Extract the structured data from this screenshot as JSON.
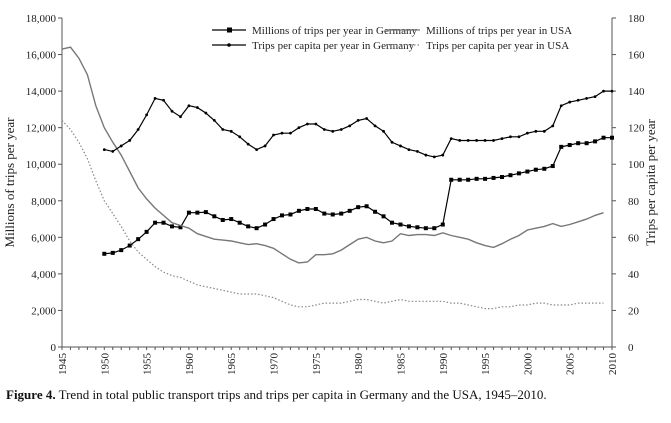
{
  "caption": {
    "label": "Figure 4.",
    "text": " Trend in total public transport trips and trips per capita in Germany and the USA, 1945–2010."
  },
  "chart_data": {
    "type": "line",
    "ylabel_left": "Millions of trips per year",
    "ylabel_right": "Trips per capita per year",
    "ylim_left": [
      0,
      18000
    ],
    "yticks_left": [
      0,
      2000,
      4000,
      6000,
      8000,
      10000,
      12000,
      14000,
      16000,
      18000
    ],
    "ytick_labels_left": [
      "0",
      "2,000",
      "4,000",
      "6,000",
      "8,000",
      "10,000",
      "12,000",
      "14,000",
      "16,000",
      "18,000"
    ],
    "ylim_right": [
      0,
      180
    ],
    "yticks_right": [
      0,
      20,
      40,
      60,
      80,
      100,
      120,
      140,
      160,
      180
    ],
    "ytick_labels_right": [
      "0",
      "20",
      "40",
      "60",
      "80",
      "100",
      "120",
      "140",
      "160",
      "180"
    ],
    "xlim": [
      1945,
      2010
    ],
    "xticks": [
      1945,
      1950,
      1955,
      1960,
      1965,
      1970,
      1975,
      1980,
      1985,
      1990,
      1995,
      2000,
      2005,
      2010
    ],
    "grid": false,
    "legend_placement": "top-center",
    "series": [
      {
        "name": "Millions of trips per year in Germany",
        "axis": "left",
        "style": "line-square",
        "color": "#000000",
        "x": [
          1950,
          1951,
          1952,
          1953,
          1954,
          1955,
          1956,
          1957,
          1958,
          1959,
          1960,
          1961,
          1962,
          1963,
          1964,
          1965,
          1966,
          1967,
          1968,
          1969,
          1970,
          1971,
          1972,
          1973,
          1974,
          1975,
          1976,
          1977,
          1978,
          1979,
          1980,
          1981,
          1982,
          1983,
          1984,
          1985,
          1986,
          1987,
          1988,
          1989,
          1990,
          1991,
          1992,
          1993,
          1994,
          1995,
          1996,
          1997,
          1998,
          1999,
          2000,
          2001,
          2002,
          2003,
          2004,
          2005,
          2006,
          2007,
          2008,
          2009,
          2010
        ],
        "y": [
          5100,
          5150,
          5300,
          5550,
          5900,
          6300,
          6800,
          6800,
          6600,
          6550,
          7350,
          7350,
          7380,
          7150,
          6950,
          7000,
          6800,
          6600,
          6500,
          6700,
          7000,
          7200,
          7250,
          7450,
          7550,
          7550,
          7300,
          7250,
          7300,
          7450,
          7650,
          7700,
          7400,
          7150,
          6800,
          6700,
          6600,
          6550,
          6500,
          6500,
          6700,
          9150,
          9150,
          9150,
          9200,
          9200,
          9250,
          9300,
          9400,
          9500,
          9600,
          9700,
          9750,
          9900,
          10950,
          11050,
          11150,
          11150,
          11250,
          11450,
          11450
        ]
      },
      {
        "name": "Millions of trips per year in USA",
        "axis": "left",
        "style": "gray-line",
        "color": "#777777",
        "x": [
          1945,
          1946,
          1947,
          1948,
          1949,
          1950,
          1951,
          1952,
          1953,
          1954,
          1955,
          1956,
          1957,
          1958,
          1959,
          1960,
          1961,
          1962,
          1963,
          1964,
          1965,
          1966,
          1967,
          1968,
          1969,
          1970,
          1971,
          1972,
          1973,
          1974,
          1975,
          1976,
          1977,
          1978,
          1979,
          1980,
          1981,
          1982,
          1983,
          1984,
          1985,
          1986,
          1987,
          1988,
          1989,
          1990,
          1991,
          1992,
          1993,
          1994,
          1995,
          1996,
          1997,
          1998,
          1999,
          2000,
          2001,
          2002,
          2003,
          2004,
          2005,
          2006,
          2007,
          2008,
          2009
        ],
        "y": [
          16300,
          16400,
          15800,
          14900,
          13200,
          12000,
          11200,
          10500,
          9600,
          8700,
          8100,
          7600,
          7200,
          6800,
          6650,
          6500,
          6200,
          6050,
          5900,
          5850,
          5800,
          5700,
          5600,
          5650,
          5550,
          5400,
          5100,
          4800,
          4600,
          4650,
          5050,
          5050,
          5100,
          5300,
          5600,
          5900,
          6000,
          5800,
          5700,
          5800,
          6200,
          6100,
          6150,
          6150,
          6100,
          6250,
          6100,
          6000,
          5900,
          5700,
          5550,
          5450,
          5650,
          5900,
          6100,
          6400,
          6500,
          6600,
          6750,
          6600,
          6700,
          6850,
          7000,
          7200,
          7350
        ]
      },
      {
        "name": "Trips per capita per year in Germany",
        "axis": "right",
        "style": "line-dot",
        "color": "#000000",
        "x": [
          1950,
          1951,
          1952,
          1953,
          1954,
          1955,
          1956,
          1957,
          1958,
          1959,
          1960,
          1961,
          1962,
          1963,
          1964,
          1965,
          1966,
          1967,
          1968,
          1969,
          1970,
          1971,
          1972,
          1973,
          1974,
          1975,
          1976,
          1977,
          1978,
          1979,
          1980,
          1981,
          1982,
          1983,
          1984,
          1985,
          1986,
          1987,
          1988,
          1989,
          1990,
          1991,
          1992,
          1993,
          1994,
          1995,
          1996,
          1997,
          1998,
          1999,
          2000,
          2001,
          2002,
          2003,
          2004,
          2005,
          2006,
          2007,
          2008,
          2009,
          2010
        ],
        "y": [
          108,
          107,
          110,
          113,
          119,
          127,
          136,
          135,
          129,
          126,
          132,
          131,
          128,
          124,
          119,
          118,
          115,
          111,
          108,
          110,
          116,
          117,
          117,
          120,
          122,
          122,
          119,
          118,
          119,
          121,
          124,
          125,
          121,
          118,
          112,
          110,
          108,
          107,
          105,
          104,
          105,
          114,
          113,
          113,
          113,
          113,
          113,
          114,
          115,
          115,
          117,
          118,
          118,
          121,
          132,
          134,
          135,
          136,
          137,
          140,
          140
        ]
      },
      {
        "name": "Trips per capita per year in USA",
        "axis": "right",
        "style": "dotted",
        "color": "#888888",
        "x": [
          1945,
          1946,
          1947,
          1948,
          1949,
          1950,
          1951,
          1952,
          1953,
          1954,
          1955,
          1956,
          1957,
          1958,
          1959,
          1960,
          1961,
          1962,
          1963,
          1964,
          1965,
          1966,
          1967,
          1968,
          1969,
          1970,
          1971,
          1972,
          1973,
          1974,
          1975,
          1976,
          1977,
          1978,
          1979,
          1980,
          1981,
          1982,
          1983,
          1984,
          1985,
          1986,
          1987,
          1988,
          1989,
          1990,
          1991,
          1992,
          1993,
          1994,
          1995,
          1996,
          1997,
          1998,
          1999,
          2000,
          2001,
          2002,
          2003,
          2004,
          2005,
          2006,
          2007,
          2008,
          2009
        ],
        "y": [
          124,
          119,
          112,
          103,
          91,
          80,
          73,
          66,
          58,
          52,
          48,
          44,
          41,
          39,
          38,
          36,
          34,
          33,
          32,
          31,
          30,
          29,
          29,
          29,
          28,
          27,
          25,
          23,
          22,
          22,
          23,
          24,
          24,
          24,
          25,
          26,
          26,
          25,
          24,
          25,
          26,
          25,
          25,
          25,
          25,
          25,
          24,
          24,
          23,
          22,
          21,
          21,
          22,
          22,
          23,
          23,
          24,
          24,
          23,
          23,
          23,
          24,
          24,
          24,
          24
        ]
      }
    ]
  },
  "colors": {
    "axis": "#555555",
    "germany_line": "#000000",
    "usa_line": "#777777",
    "usa_dotted": "#888888"
  }
}
